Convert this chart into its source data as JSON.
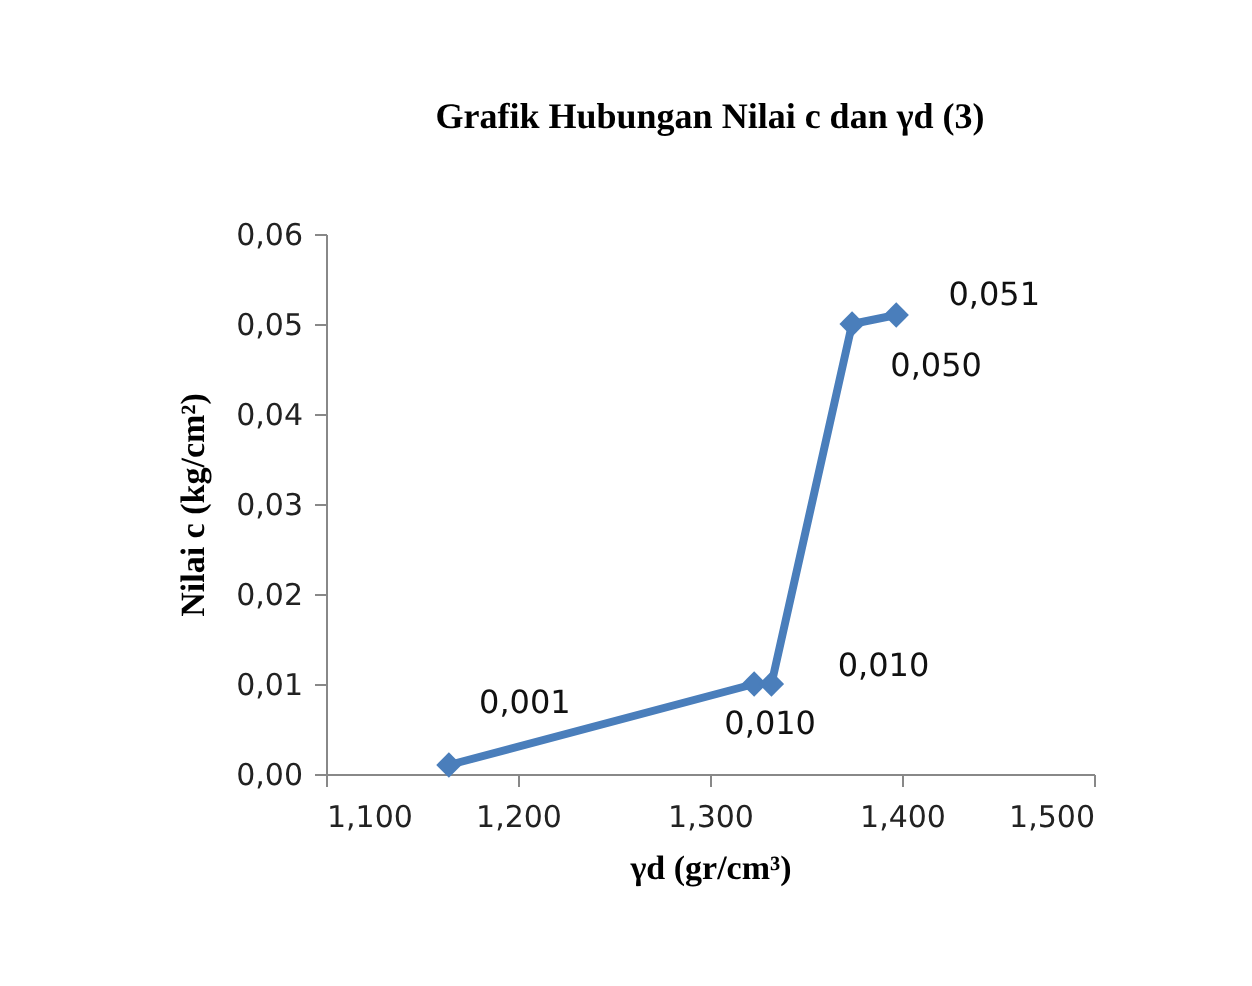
{
  "chart_data": {
    "type": "line",
    "title": "Grafik Hubungan Nilai c dan γd (3)",
    "xlabel": "γd (gr/cm³)",
    "ylabel": "Nilai c (kg/cm²)",
    "x": [
      1.164,
      1.323,
      1.332,
      1.374,
      1.397
    ],
    "series": [
      {
        "color": "#4a7ebb",
        "values": [
          0.001,
          0.01,
          0.01,
          0.05,
          0.051
        ],
        "value_labels": [
          "0,001",
          "0,010",
          "0,010",
          "0,050",
          "0,051"
        ]
      }
    ],
    "xlim": [
      1.1,
      1.5
    ],
    "xticks": [
      {
        "value": 1.1,
        "label": "1,100"
      },
      {
        "value": 1.2,
        "label": "1,200"
      },
      {
        "value": 1.3,
        "label": "1,300"
      },
      {
        "value": 1.4,
        "label": "1,400"
      },
      {
        "value": 1.5,
        "label": "1,500"
      }
    ],
    "ylim": [
      0,
      0.06
    ],
    "yticks": [
      {
        "value": 0,
        "label": "0,00"
      },
      {
        "value": 0.01,
        "label": "0,01"
      },
      {
        "value": 0.02,
        "label": "0,02"
      },
      {
        "value": 0.03,
        "label": "0,03"
      },
      {
        "value": 0.04,
        "label": "0,04"
      },
      {
        "value": 0.05,
        "label": "0,05"
      },
      {
        "value": 0.06,
        "label": "0,06"
      }
    ],
    "marker": "diamond",
    "line_style": "solid"
  }
}
